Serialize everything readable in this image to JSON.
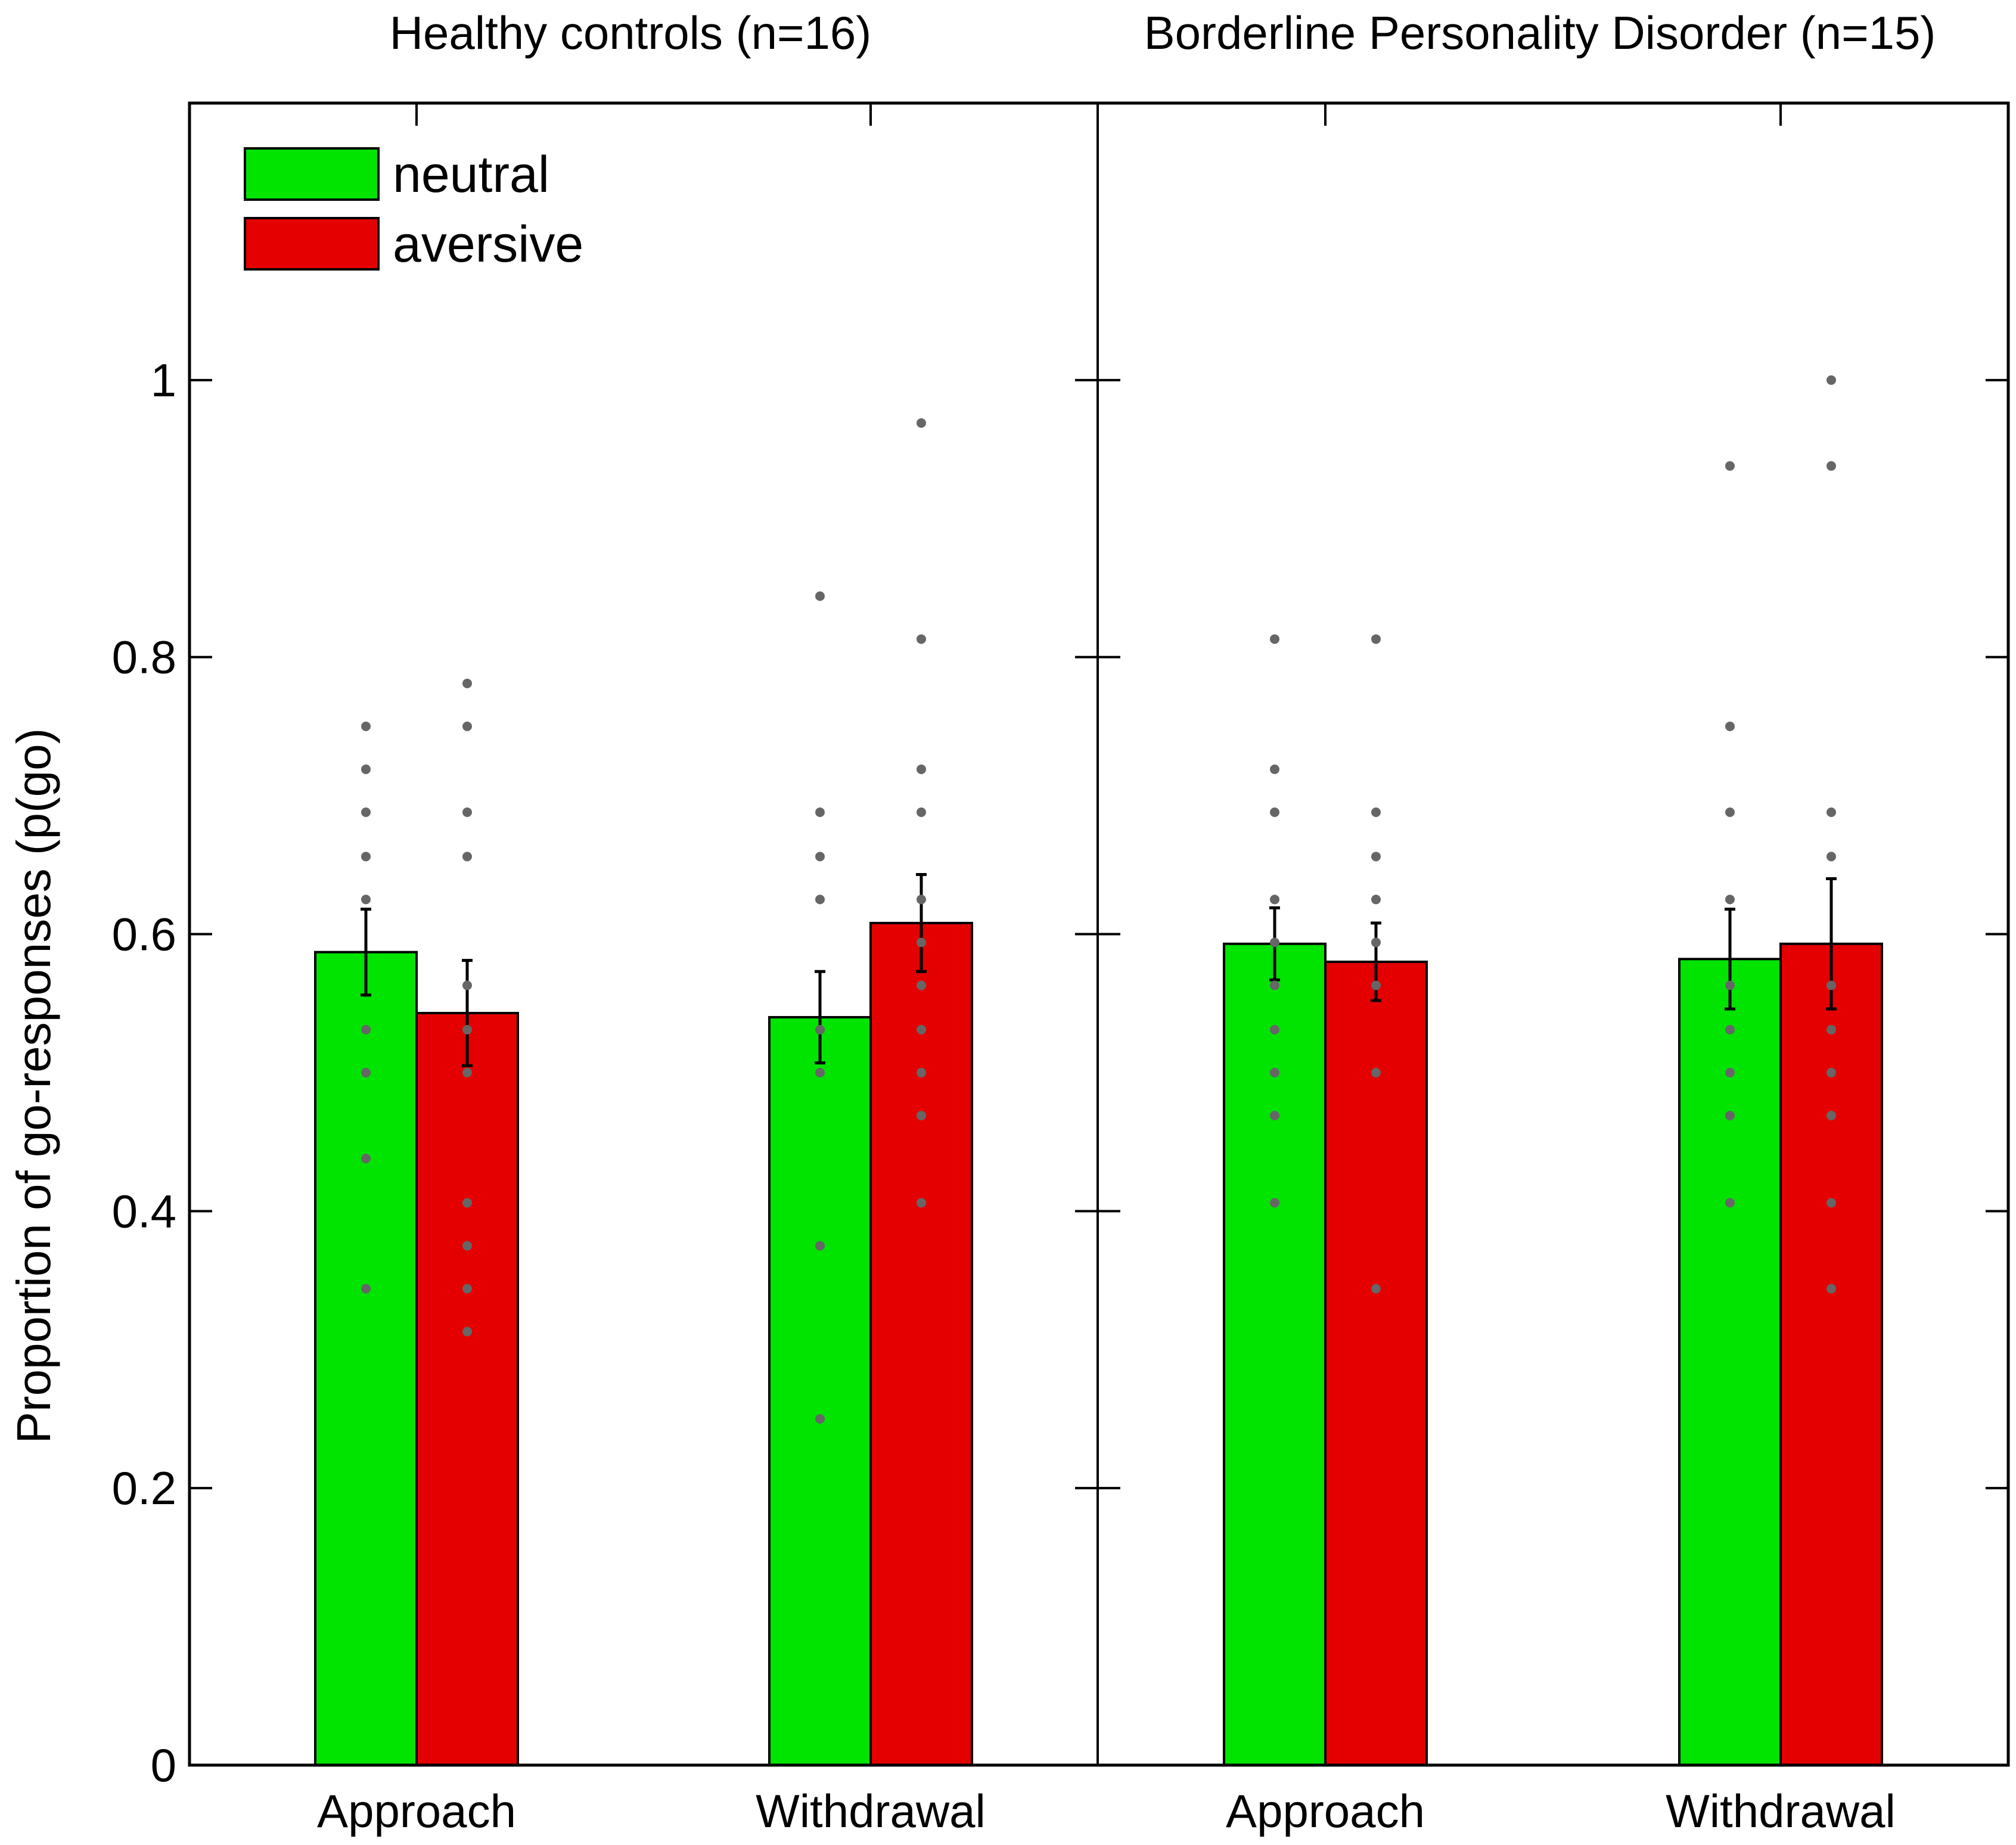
{
  "chart_data": {
    "type": "bar",
    "ylabel": "Proportion of go-responses (p(go)",
    "ylim": [
      0,
      1.2
    ],
    "yticks": [
      0,
      0.2,
      0.4,
      0.6,
      0.8,
      1
    ],
    "ytick_labels": [
      "0",
      "0.2",
      "0.4",
      "0.6",
      "0.8",
      "1"
    ],
    "categories": [
      "Approach",
      "Withdrawal"
    ],
    "colors": {
      "neutral": "#00e400",
      "aversive": "#e40000",
      "dots": "#666666"
    },
    "legend": {
      "position": "top-left",
      "entries": [
        {
          "key": "neutral",
          "label": "neutral"
        },
        {
          "key": "aversive",
          "label": "aversive"
        }
      ]
    },
    "panels": [
      {
        "title": "Healthy controls (n=16)",
        "series": [
          {
            "name": "neutral",
            "values": [
              0.587,
              0.54
            ],
            "errors": [
              0.031,
              0.033
            ],
            "points": [
              [
                0.75,
                0.719,
                0.688,
                0.656,
                0.625,
                0.531,
                0.5,
                0.438,
                0.344
              ],
              [
                0.844,
                0.688,
                0.656,
                0.625,
                0.531,
                0.5,
                0.375,
                0.25
              ]
            ]
          },
          {
            "name": "aversive",
            "values": [
              0.543,
              0.608
            ],
            "errors": [
              0.038,
              0.035
            ],
            "points": [
              [
                0.781,
                0.75,
                0.688,
                0.656,
                0.563,
                0.531,
                0.5,
                0.406,
                0.375,
                0.344,
                0.313
              ],
              [
                0.969,
                0.813,
                0.719,
                0.688,
                0.625,
                0.594,
                0.563,
                0.531,
                0.5,
                0.469,
                0.406
              ]
            ]
          }
        ]
      },
      {
        "title": "Borderline Personality Disorder (n=15)",
        "series": [
          {
            "name": "neutral",
            "values": [
              0.593,
              0.582
            ],
            "errors": [
              0.026,
              0.036
            ],
            "points": [
              [
                0.813,
                0.719,
                0.688,
                0.625,
                0.594,
                0.563,
                0.531,
                0.5,
                0.469,
                0.406
              ],
              [
                0.938,
                0.75,
                0.688,
                0.625,
                0.563,
                0.531,
                0.5,
                0.469,
                0.406
              ]
            ]
          },
          {
            "name": "aversive",
            "values": [
              0.58,
              0.593
            ],
            "errors": [
              0.028,
              0.047
            ],
            "points": [
              [
                0.813,
                0.688,
                0.656,
                0.625,
                0.594,
                0.563,
                0.5,
                0.344
              ],
              [
                1.0,
                0.938,
                0.688,
                0.656,
                0.563,
                0.531,
                0.5,
                0.469,
                0.406,
                0.344
              ]
            ]
          }
        ]
      }
    ]
  }
}
